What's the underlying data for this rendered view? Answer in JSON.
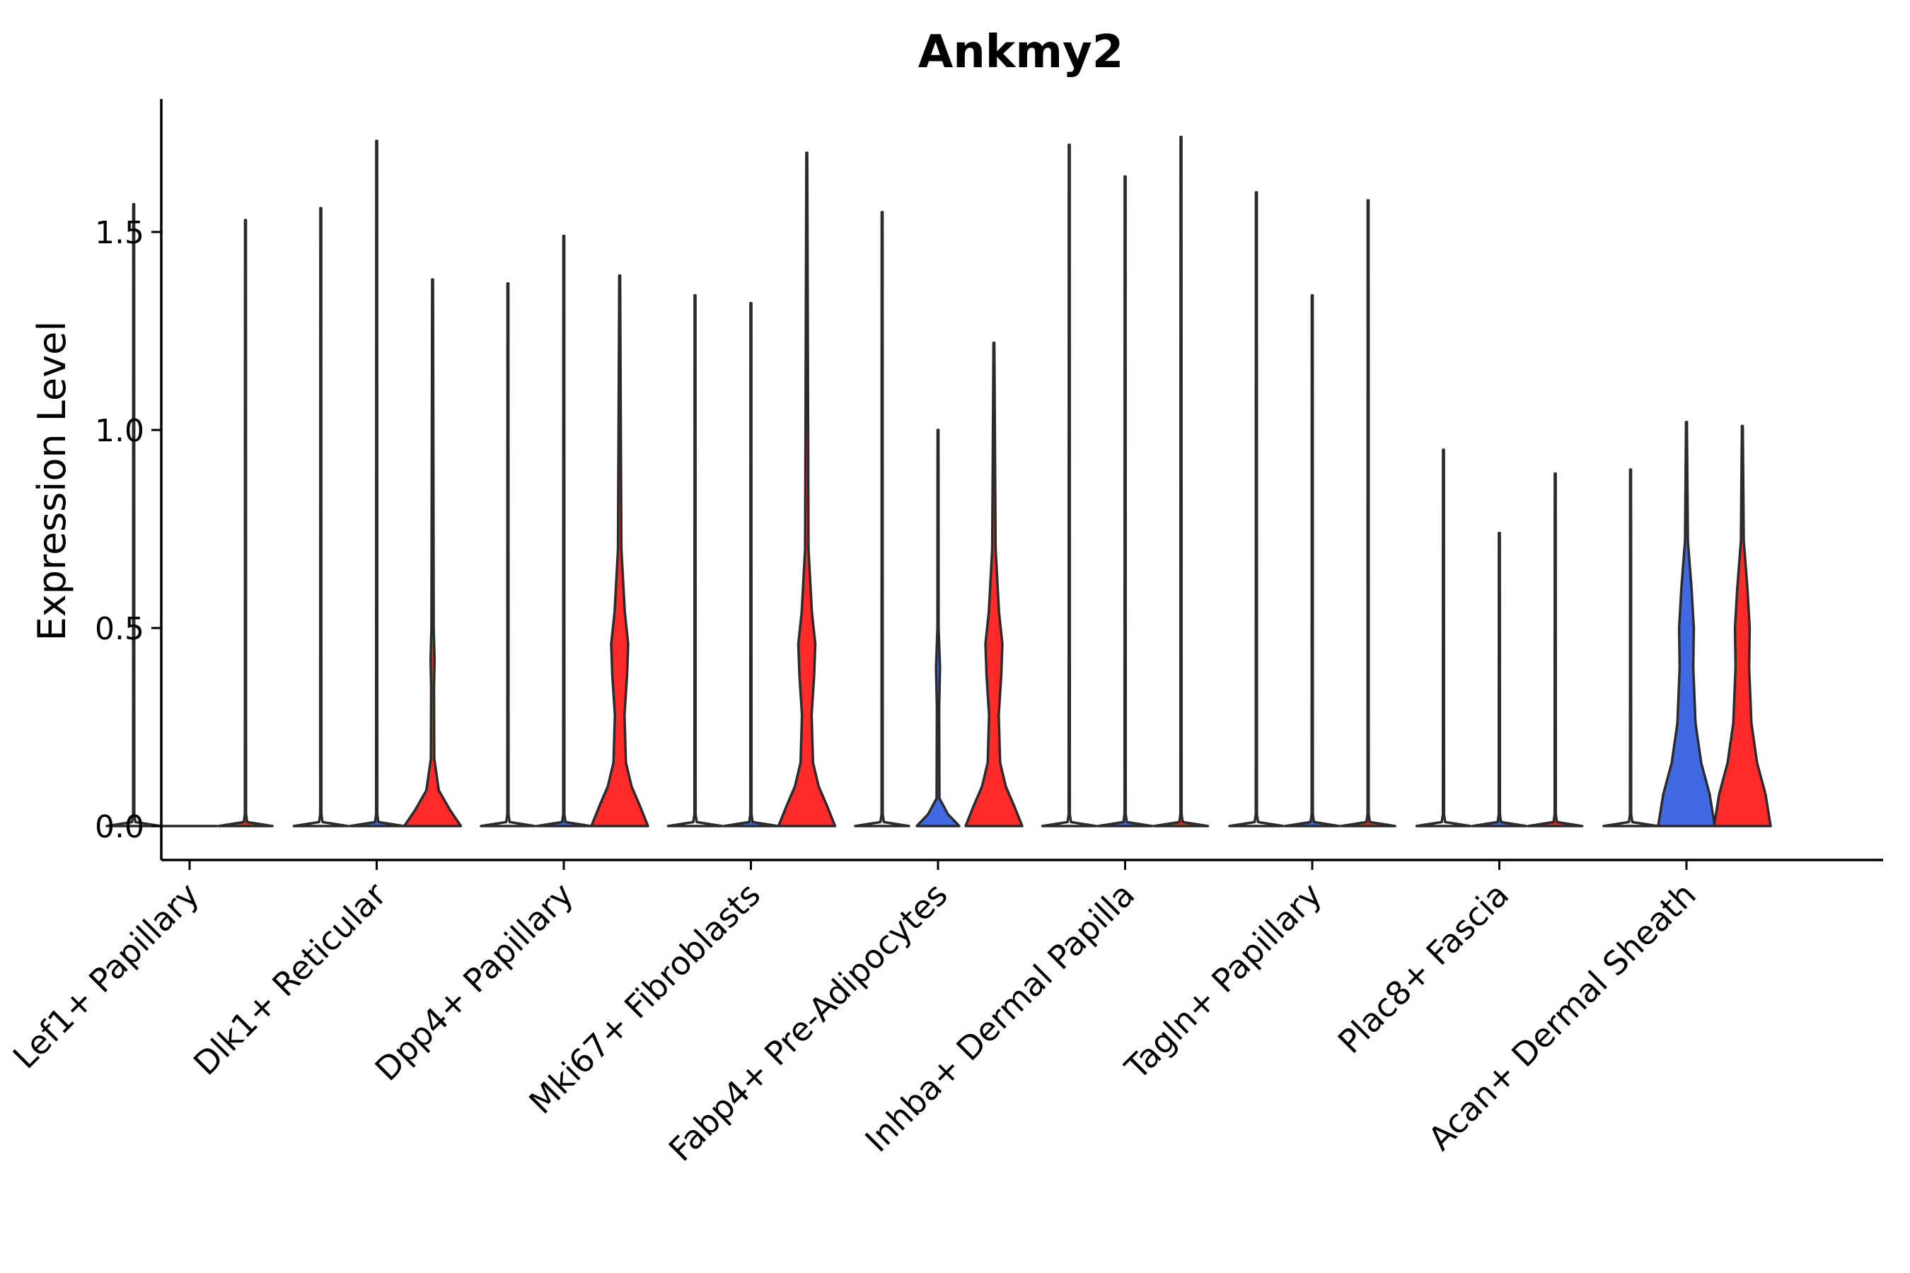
{
  "chart_data": {
    "type": "violin",
    "title": "Ankmy2",
    "xlabel": "",
    "ylabel": "Expression Level",
    "ylim": [
      -0.09,
      1.84
    ],
    "yticks": [
      "0.0",
      "0.5",
      "1.0",
      "1.5"
    ],
    "ytick_values": [
      0.0,
      0.5,
      1.0,
      1.5
    ],
    "grid": false,
    "legend": "none",
    "categories": [
      "Lef1+ Papillary",
      "Dlk1+ Reticular",
      "Dpp4+ Papillary",
      "Mki67+ Fibroblasts",
      "Fabp4+ Pre-Adipocytes",
      "Inhba+ Dermal Papilla",
      "Tagln+ Papillary",
      "Plac8+ Fascia",
      "Acan+ Dermal Sheath"
    ],
    "groups_per_category": 3,
    "colors": {
      "group1": "#ffffff",
      "group2": "#4169e1",
      "group3": "#ff2a2a",
      "outline": "#2b2b2b",
      "axis": "#000000"
    },
    "violins": [
      {
        "category": "Lef1+ Papillary",
        "group": 1,
        "max": 1.57,
        "shape": "flat"
      },
      {
        "category": "Lef1+ Papillary",
        "group": 2,
        "max": 0.0,
        "shape": "flat"
      },
      {
        "category": "Lef1+ Papillary",
        "group": 3,
        "max": 1.53,
        "shape": "flat"
      },
      {
        "category": "Dlk1+ Reticular",
        "group": 1,
        "max": 1.56,
        "shape": "flat"
      },
      {
        "category": "Dlk1+ Reticular",
        "group": 2,
        "max": 1.73,
        "shape": "flat"
      },
      {
        "category": "Dlk1+ Reticular",
        "group": 3,
        "max": 1.38,
        "shape": "low"
      },
      {
        "category": "Dpp4+ Papillary",
        "group": 1,
        "max": 1.37,
        "shape": "flat"
      },
      {
        "category": "Dpp4+ Papillary",
        "group": 2,
        "max": 1.49,
        "shape": "flat"
      },
      {
        "category": "Dpp4+ Papillary",
        "group": 3,
        "max": 1.39,
        "shape": "mid"
      },
      {
        "category": "Mki67+ Fibroblasts",
        "group": 1,
        "max": 1.34,
        "shape": "flat"
      },
      {
        "category": "Mki67+ Fibroblasts",
        "group": 2,
        "max": 1.32,
        "shape": "flat"
      },
      {
        "category": "Mki67+ Fibroblasts",
        "group": 3,
        "max": 1.7,
        "shape": "mid"
      },
      {
        "category": "Fabp4+ Pre-Adipocytes",
        "group": 1,
        "max": 1.55,
        "shape": "flat"
      },
      {
        "category": "Fabp4+ Pre-Adipocytes",
        "group": 2,
        "max": 1.0,
        "shape": "small"
      },
      {
        "category": "Fabp4+ Pre-Adipocytes",
        "group": 3,
        "max": 1.22,
        "shape": "mid"
      },
      {
        "category": "Inhba+ Dermal Papilla",
        "group": 1,
        "max": 1.72,
        "shape": "flat"
      },
      {
        "category": "Inhba+ Dermal Papilla",
        "group": 2,
        "max": 1.64,
        "shape": "flat"
      },
      {
        "category": "Inhba+ Dermal Papilla",
        "group": 3,
        "max": 1.74,
        "shape": "flat"
      },
      {
        "category": "Tagln+ Papillary",
        "group": 1,
        "max": 1.6,
        "shape": "flat"
      },
      {
        "category": "Tagln+ Papillary",
        "group": 2,
        "max": 1.34,
        "shape": "flat"
      },
      {
        "category": "Tagln+ Papillary",
        "group": 3,
        "max": 1.58,
        "shape": "flat"
      },
      {
        "category": "Plac8+ Fascia",
        "group": 1,
        "max": 0.95,
        "shape": "flat"
      },
      {
        "category": "Plac8+ Fascia",
        "group": 2,
        "max": 0.74,
        "shape": "flat"
      },
      {
        "category": "Plac8+ Fascia",
        "group": 3,
        "max": 0.89,
        "shape": "flat"
      },
      {
        "category": "Acan+ Dermal Sheath",
        "group": 1,
        "max": 0.9,
        "shape": "flat"
      },
      {
        "category": "Acan+ Dermal Sheath",
        "group": 2,
        "max": 1.02,
        "shape": "wide"
      },
      {
        "category": "Acan+ Dermal Sheath",
        "group": 3,
        "max": 1.01,
        "shape": "wide"
      }
    ]
  }
}
